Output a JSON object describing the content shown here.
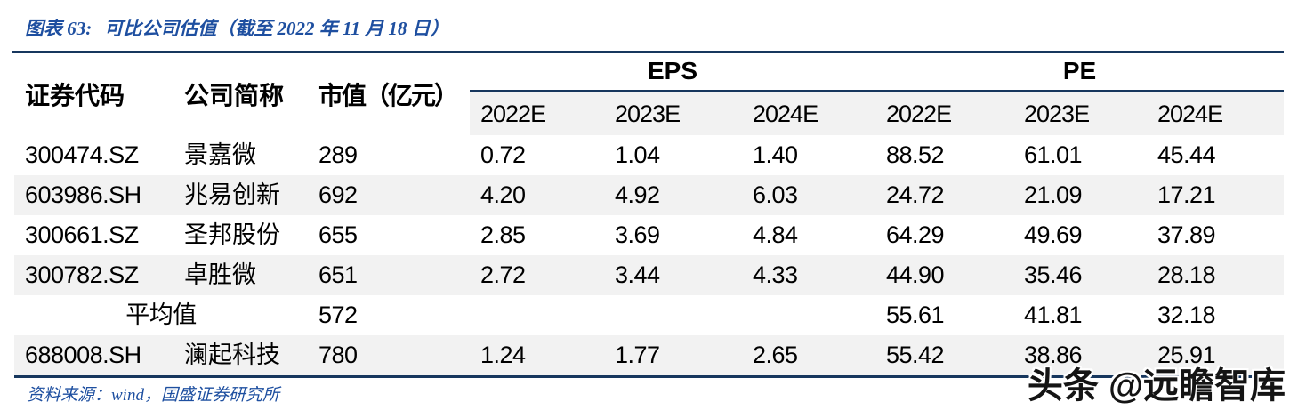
{
  "title": {
    "label": "图表 63:",
    "text": "可比公司估值（截至 2022 年 11 月 18 日）"
  },
  "table": {
    "headers": {
      "code": "证券代码",
      "name": "公司简称",
      "mcap": "市值（亿元）"
    },
    "groups": {
      "eps": "EPS",
      "pe": "PE"
    },
    "year_headers": [
      "2022E",
      "2023E",
      "2024E",
      "2022E",
      "2023E",
      "2024E"
    ],
    "rows": [
      {
        "code": "300474.SZ",
        "name": "景嘉微",
        "mcap": "289",
        "eps": [
          "0.72",
          "1.04",
          "1.40"
        ],
        "pe": [
          "88.52",
          "61.01",
          "45.44"
        ]
      },
      {
        "code": "603986.SH",
        "name": "兆易创新",
        "mcap": "692",
        "eps": [
          "4.20",
          "4.92",
          "6.03"
        ],
        "pe": [
          "24.72",
          "21.09",
          "17.21"
        ]
      },
      {
        "code": "300661.SZ",
        "name": "圣邦股份",
        "mcap": "655",
        "eps": [
          "2.85",
          "3.69",
          "4.84"
        ],
        "pe": [
          "64.29",
          "49.69",
          "37.89"
        ]
      },
      {
        "code": "300782.SZ",
        "name": "卓胜微",
        "mcap": "651",
        "eps": [
          "2.72",
          "3.44",
          "4.33"
        ],
        "pe": [
          "44.90",
          "35.46",
          "28.18"
        ]
      },
      {
        "code": "",
        "name": "平均值",
        "mcap": "572",
        "eps": [
          "",
          "",
          ""
        ],
        "pe": [
          "55.61",
          "41.81",
          "32.18"
        ]
      },
      {
        "code": "688008.SH",
        "name": "澜起科技",
        "mcap": "780",
        "eps": [
          "1.24",
          "1.77",
          "2.65"
        ],
        "pe": [
          "55.42",
          "38.86",
          "25.91"
        ]
      }
    ]
  },
  "source": {
    "text": "资料来源：wind，国盛证券研究所"
  },
  "watermark": {
    "text": "头条 @远瞻智库"
  },
  "colors": {
    "rule_navy": "#17375E",
    "title_blue": "#1E4FA0",
    "row_stripe": "#F2F2F2"
  }
}
